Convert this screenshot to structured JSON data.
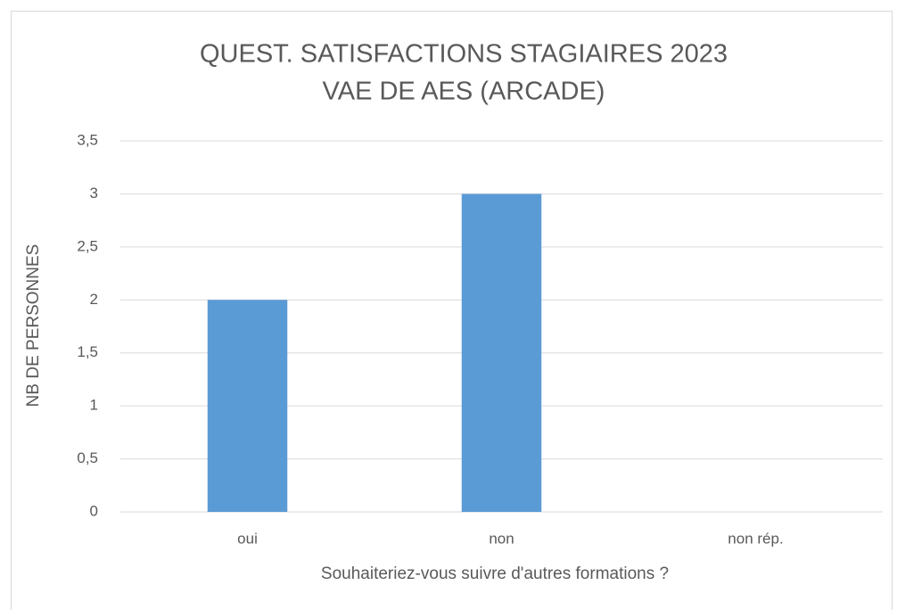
{
  "chart_data": {
    "type": "bar",
    "title": [
      "QUEST. SATISFACTIONS STAGIAIRES 2023",
      "VAE DE AES (ARCADE)"
    ],
    "x_label": "Souhaiteriez-vous suivre d'autres formations ?",
    "y_label": "NB DE PERSONNES",
    "categories": [
      "oui",
      "non",
      "non rép."
    ],
    "values": [
      2,
      3,
      0
    ],
    "color": "#5b9bd5",
    "ylim": [
      0,
      3.5
    ],
    "yticks": [
      0,
      {
        "value": 0.5,
        "label": "0,5"
      },
      1,
      {
        "value": 1.5,
        "label": "1,5"
      },
      2,
      {
        "value": 2.5,
        "label": "2,5"
      },
      3,
      {
        "value": 3.5,
        "label": "3,5"
      }
    ],
    "grid": true
  }
}
